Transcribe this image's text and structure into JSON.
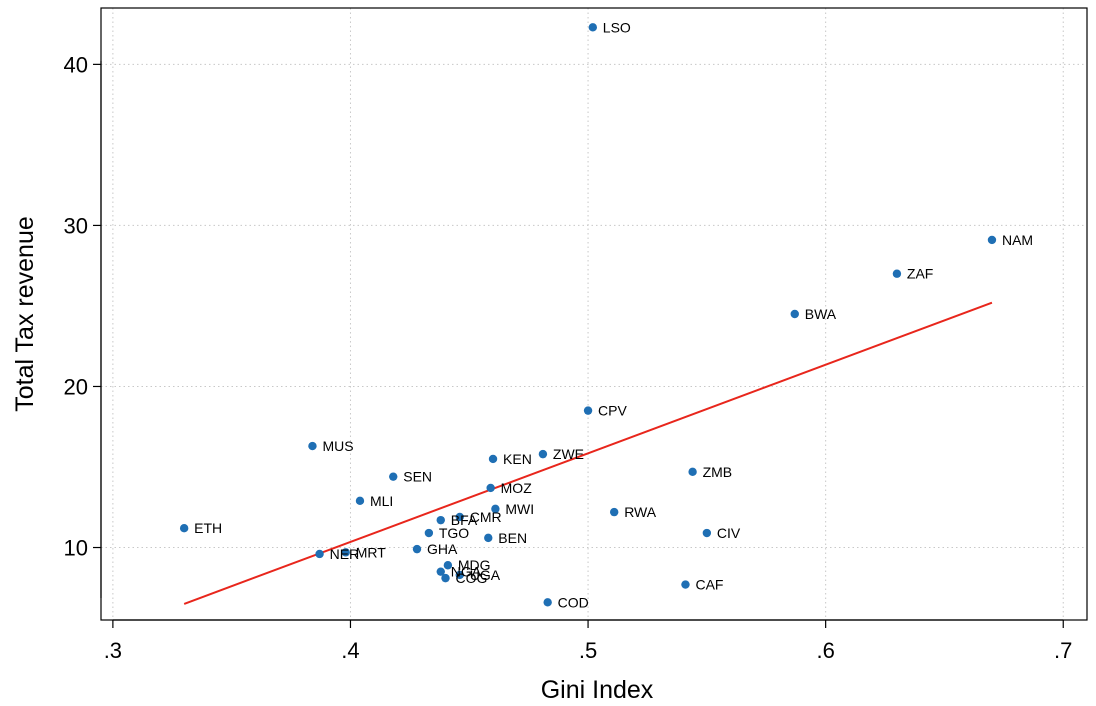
{
  "chart_data": {
    "type": "scatter",
    "title": "",
    "xlabel": "Gini Index",
    "ylabel": "Total Tax revenue",
    "xlim": [
      0.295,
      0.71
    ],
    "ylim": [
      5.5,
      43.5
    ],
    "xticks": [
      {
        "value": 0.3,
        "label": ".3"
      },
      {
        "value": 0.4,
        "label": ".4"
      },
      {
        "value": 0.5,
        "label": ".5"
      },
      {
        "value": 0.6,
        "label": ".6"
      },
      {
        "value": 0.7,
        "label": ".7"
      }
    ],
    "yticks": [
      {
        "value": 10,
        "label": "10"
      },
      {
        "value": 20,
        "label": "20"
      },
      {
        "value": 30,
        "label": "30"
      },
      {
        "value": 40,
        "label": "40"
      }
    ],
    "grid": true,
    "point_color": "#1f6fb4",
    "fit_line_color": "#e8261c",
    "points": [
      {
        "label": "LSO",
        "x": 0.502,
        "y": 42.3
      },
      {
        "label": "NAM",
        "x": 0.67,
        "y": 29.1
      },
      {
        "label": "ZAF",
        "x": 0.63,
        "y": 27.0
      },
      {
        "label": "BWA",
        "x": 0.587,
        "y": 24.5
      },
      {
        "label": "CPV",
        "x": 0.5,
        "y": 18.5
      },
      {
        "label": "MUS",
        "x": 0.384,
        "y": 16.3
      },
      {
        "label": "KEN",
        "x": 0.46,
        "y": 15.5
      },
      {
        "label": "ZWE",
        "x": 0.481,
        "y": 15.8
      },
      {
        "label": "ZMB",
        "x": 0.544,
        "y": 14.7
      },
      {
        "label": "SEN",
        "x": 0.418,
        "y": 14.4
      },
      {
        "label": "MOZ",
        "x": 0.459,
        "y": 13.7
      },
      {
        "label": "MLI",
        "x": 0.404,
        "y": 12.9
      },
      {
        "label": "MWI",
        "x": 0.461,
        "y": 12.4
      },
      {
        "label": "RWA",
        "x": 0.511,
        "y": 12.2
      },
      {
        "label": "BFA",
        "x": 0.438,
        "y": 11.7
      },
      {
        "label": "CMR",
        "x": 0.446,
        "y": 11.9
      },
      {
        "label": "ETH",
        "x": 0.33,
        "y": 11.2
      },
      {
        "label": "TGO",
        "x": 0.433,
        "y": 10.9
      },
      {
        "label": "CIV",
        "x": 0.55,
        "y": 10.9
      },
      {
        "label": "BEN",
        "x": 0.458,
        "y": 10.6
      },
      {
        "label": "GHA",
        "x": 0.428,
        "y": 9.9
      },
      {
        "label": "NER",
        "x": 0.387,
        "y": 9.6
      },
      {
        "label": "MRT",
        "x": 0.398,
        "y": 9.7
      },
      {
        "label": "MDG",
        "x": 0.441,
        "y": 8.9
      },
      {
        "label": "NGA",
        "x": 0.438,
        "y": 8.5
      },
      {
        "label": "UGA",
        "x": 0.446,
        "y": 8.3
      },
      {
        "label": "COG",
        "x": 0.44,
        "y": 8.1
      },
      {
        "label": "CAF",
        "x": 0.541,
        "y": 7.7
      },
      {
        "label": "COD",
        "x": 0.483,
        "y": 6.6
      }
    ],
    "fit_line": [
      {
        "x": 0.33,
        "y": 6.5
      },
      {
        "x": 0.67,
        "y": 25.2
      }
    ]
  }
}
